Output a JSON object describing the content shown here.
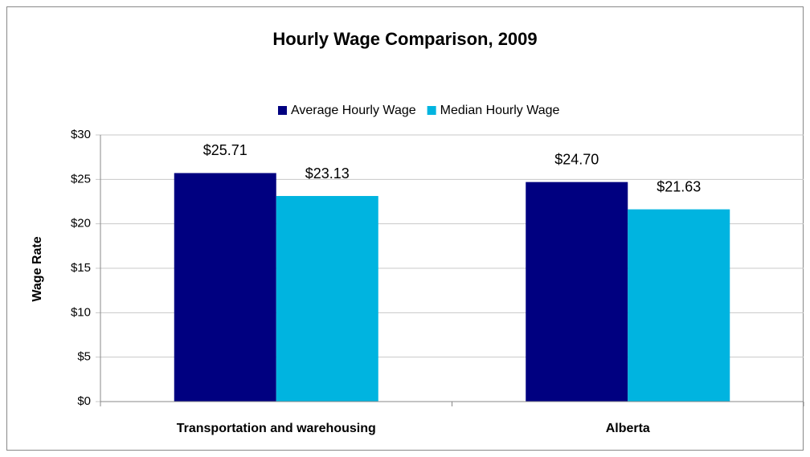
{
  "chart_data": {
    "type": "bar",
    "title": "Hourly Wage Comparison, 2009",
    "y_label": "Wage Rate",
    "categories": [
      "Transportation and warehousing",
      "Alberta"
    ],
    "series": [
      {
        "name": "Average Hourly Wage",
        "color": "#000080",
        "values": [
          25.71,
          24.7
        ],
        "value_labels": [
          "$25.71",
          "$24.70"
        ]
      },
      {
        "name": "Median Hourly Wage",
        "color": "#00b4e0",
        "values": [
          23.13,
          21.63
        ],
        "value_labels": [
          "$23.13",
          "$21.63"
        ]
      }
    ],
    "ylim": [
      0,
      30
    ],
    "yticks": [
      {
        "value": 0,
        "label": "$0"
      },
      {
        "value": 5,
        "label": "$5"
      },
      {
        "value": 10,
        "label": "$10"
      },
      {
        "value": 15,
        "label": "$15"
      },
      {
        "value": 20,
        "label": "$20"
      },
      {
        "value": 25,
        "label": "$25"
      },
      {
        "value": 30,
        "label": "$30"
      }
    ],
    "grid": true,
    "legend": "top"
  }
}
